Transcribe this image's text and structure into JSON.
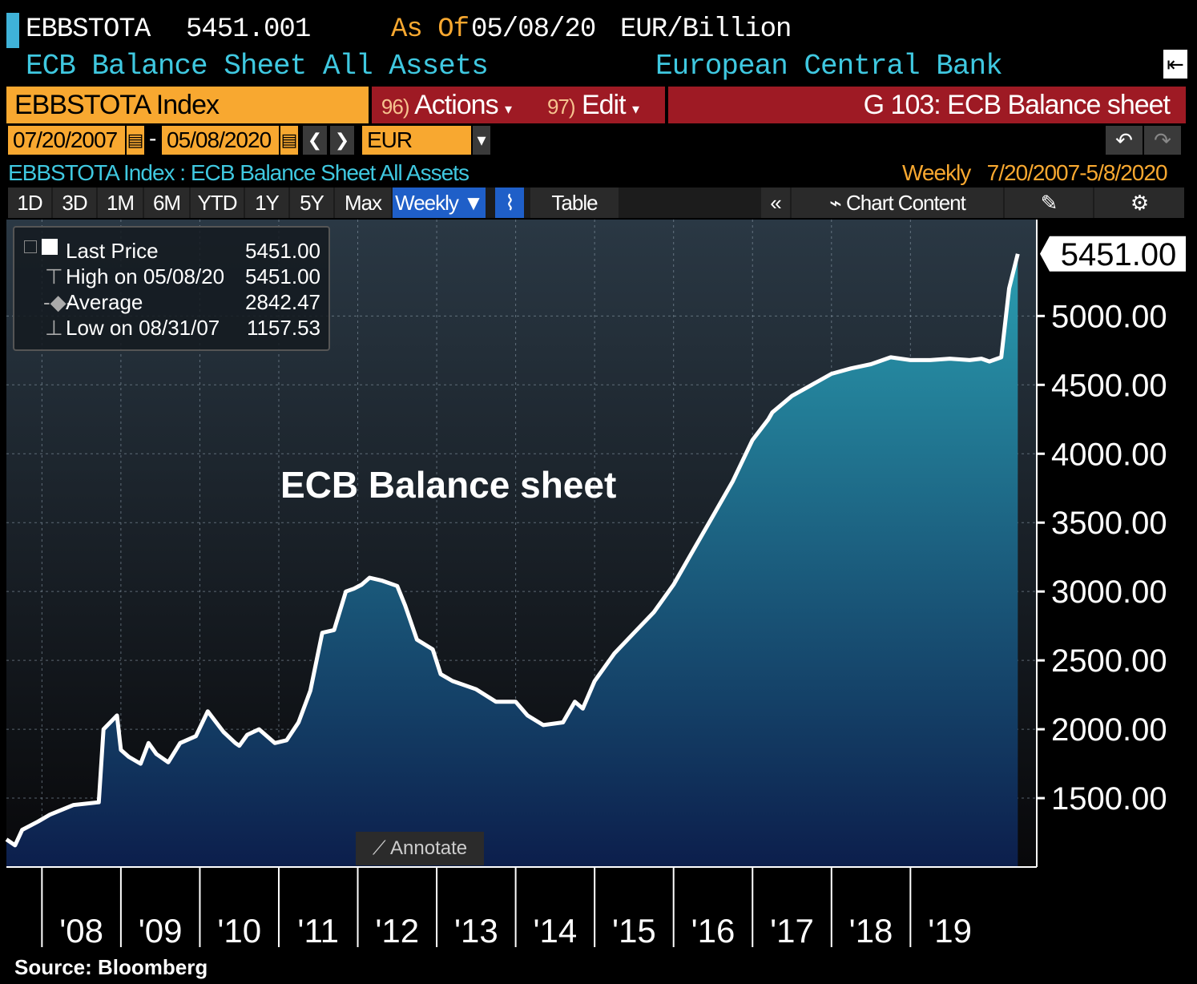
{
  "header": {
    "ticker": "EBBSTOTA",
    "last_value": "5451.001",
    "as_of_label": "As Of",
    "as_of_date": "05/08/20",
    "unit": "EUR/Billion",
    "description": "ECB Balance Sheet All Assets",
    "source_name": "European Central Bank"
  },
  "toolbar": {
    "ticker_box": "EBBSTOTA Index",
    "actions_num": "96)",
    "actions_label": "Actions",
    "edit_num": "97)",
    "edit_label": "Edit",
    "g_label": "G 103: ECB Balance sheet",
    "start_date": "07/20/2007",
    "date_sep": "-",
    "end_date": "05/08/2020",
    "currency": "EUR"
  },
  "subheader": {
    "left": "EBBSTOTA Index : ECB Balance Sheet All Assets",
    "frequency": "Weekly",
    "range": "7/20/2007-5/8/2020"
  },
  "tabs": {
    "periods": [
      "1D",
      "3D",
      "1M",
      "6M",
      "YTD",
      "1Y",
      "5Y",
      "Max"
    ],
    "frequency": "Weekly ▼",
    "table": "Table",
    "chart_content": "Chart Content"
  },
  "legend": {
    "last_label": "Last Price",
    "last_value": "5451.00",
    "high_label": "High on 05/08/20",
    "high_value": "5451.00",
    "avg_label": "Average",
    "avg_value": "2842.47",
    "low_label": "Low on 08/31/07",
    "low_value": "1157.53"
  },
  "overlay_title": "ECB Balance sheet",
  "annotate_label": "Annotate",
  "source": "Source:  Bloomberg",
  "last_price_tag": "5451.00",
  "chart_data": {
    "type": "area",
    "title": "ECB Balance sheet",
    "series": [
      {
        "name": "Last Price",
        "x": [
          2007.55,
          2007.66,
          2007.75,
          2007.95,
          2008.1,
          2008.4,
          2008.72,
          2008.78,
          2008.95,
          2009.0,
          2009.1,
          2009.25,
          2009.35,
          2009.45,
          2009.6,
          2009.75,
          2009.95,
          2010.1,
          2010.3,
          2010.45,
          2010.5,
          2010.6,
          2010.75,
          2010.95,
          2011.1,
          2011.25,
          2011.4,
          2011.55,
          2011.7,
          2011.85,
          2011.95,
          2012.05,
          2012.15,
          2012.3,
          2012.5,
          2012.6,
          2012.75,
          2012.95,
          2013.05,
          2013.2,
          2013.5,
          2013.75,
          2014.0,
          2014.15,
          2014.35,
          2014.6,
          2014.75,
          2014.85,
          2015.0,
          2015.25,
          2015.5,
          2015.75,
          2016.0,
          2016.25,
          2016.5,
          2016.75,
          2017.0,
          2017.2,
          2017.25,
          2017.5,
          2017.75,
          2018.0,
          2018.25,
          2018.5,
          2018.75,
          2019.0,
          2019.25,
          2019.5,
          2019.75,
          2019.9,
          2020.0,
          2020.15,
          2020.25,
          2020.36
        ],
        "values": [
          1200,
          1157.53,
          1270,
          1330,
          1380,
          1450,
          1470,
          2000,
          2100,
          1850,
          1800,
          1750,
          1900,
          1820,
          1760,
          1900,
          1950,
          2130,
          1980,
          1900,
          1880,
          1960,
          2000,
          1900,
          1920,
          2050,
          2280,
          2700,
          2720,
          3000,
          3020,
          3050,
          3100,
          3080,
          3040,
          2900,
          2650,
          2580,
          2400,
          2350,
          2290,
          2200,
          2200,
          2100,
          2030,
          2050,
          2200,
          2150,
          2350,
          2550,
          2700,
          2850,
          3050,
          3300,
          3550,
          3800,
          4100,
          4250,
          4300,
          4420,
          4500,
          4580,
          4620,
          4650,
          4700,
          4680,
          4680,
          4690,
          4680,
          4690,
          4670,
          4700,
          5200,
          5451
        ]
      }
    ],
    "x_ticks": [
      "'08",
      "'09",
      "'10",
      "'11",
      "'12",
      "'13",
      "'14",
      "'15",
      "'16",
      "'17",
      "'18",
      "'19"
    ],
    "y_ticks": [
      "1500.00",
      "2000.00",
      "2500.00",
      "3000.00",
      "3500.00",
      "4000.00",
      "4500.00",
      "5000.00"
    ],
    "ylim": [
      1000,
      5700
    ],
    "xlim": [
      2007.55,
      2020.6
    ],
    "grid": true,
    "legend_placement": "top-left",
    "line_color": "#ffffff",
    "fill_top_color": "#2a9db0",
    "fill_bottom_color": "#0c1e4c"
  }
}
